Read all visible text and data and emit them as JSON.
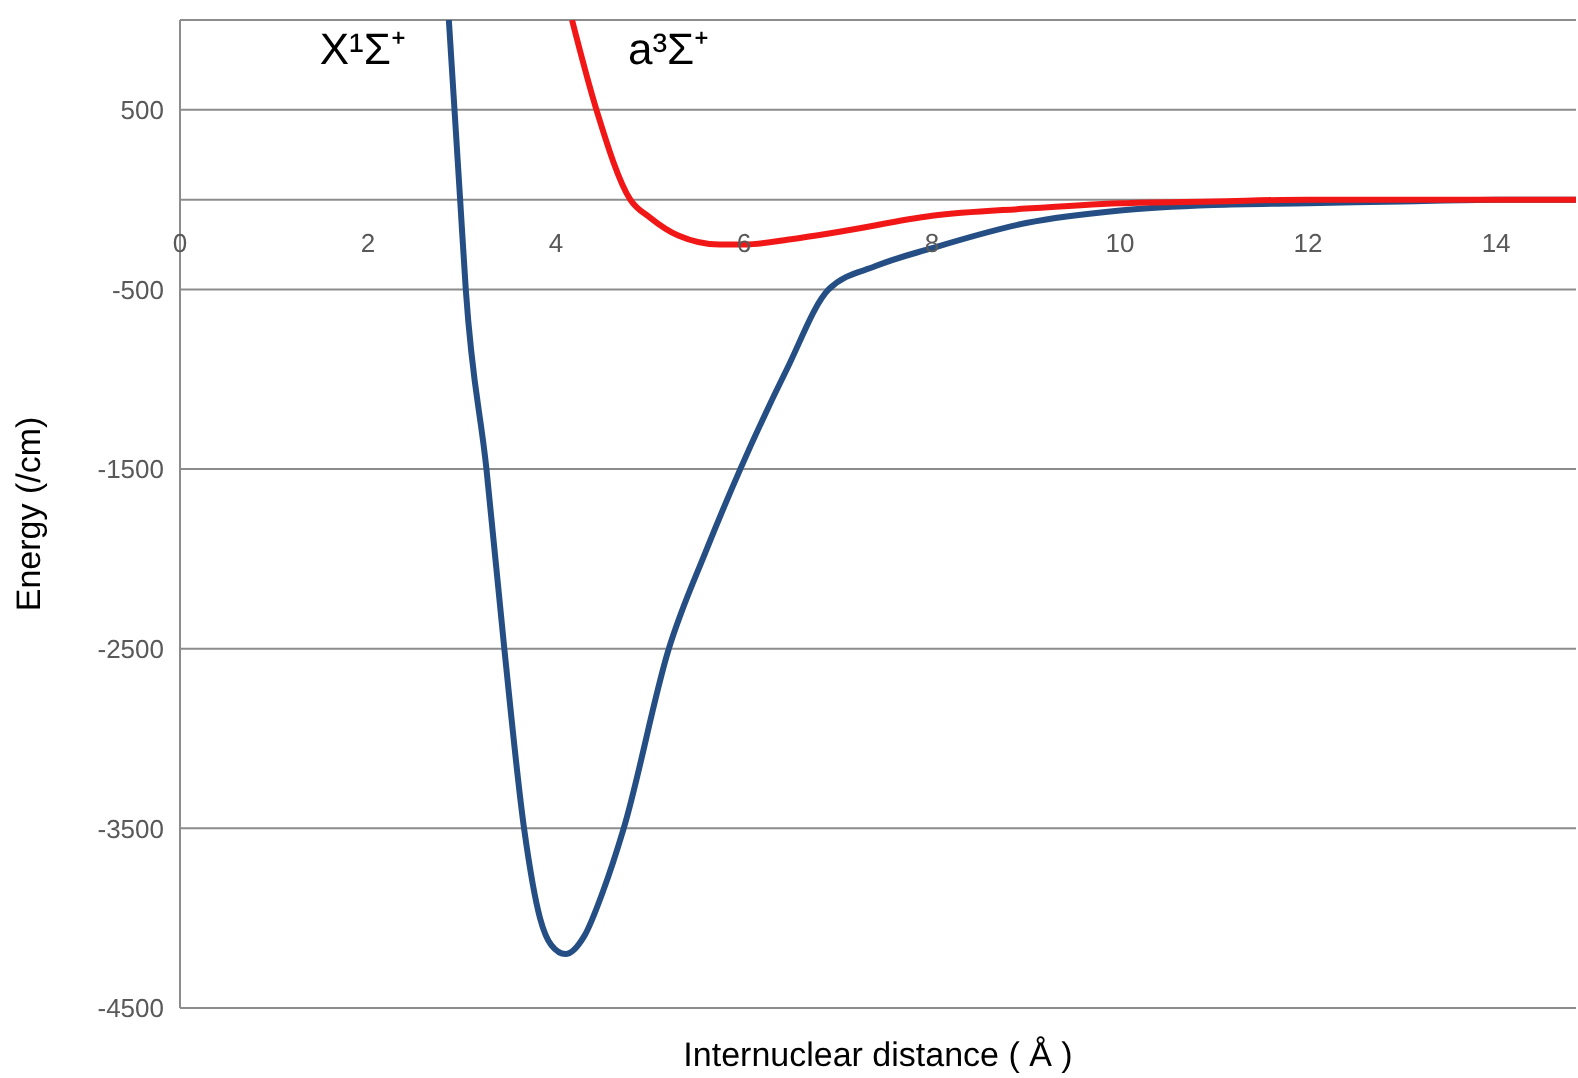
{
  "chart_data": {
    "type": "line",
    "xlabel": "Internuclear distance ( Å )",
    "ylabel": "Energy (/cm)",
    "xlim": [
      0,
      14.85
    ],
    "xticks": [
      0,
      2,
      4,
      6,
      8,
      10,
      12,
      14
    ],
    "ylim": [
      -4500,
      1000
    ],
    "yticks": [
      500,
      -500,
      -1500,
      -2500,
      -3500,
      -4500
    ],
    "grid": "y",
    "marker": "none",
    "line_style": "solid",
    "series": [
      {
        "name": "X¹Σ⁺",
        "color": "#254f84",
        "x": [
          2.86,
          2.98,
          3.04,
          3.26,
          3.45,
          3.66,
          3.83,
          3.95,
          4.1,
          4.3,
          4.5,
          4.72,
          5.2,
          5.6,
          5.96,
          6.45,
          6.9,
          7.4,
          8,
          9,
          10,
          11,
          12,
          13,
          14,
          14.85
        ],
        "values": [
          1000,
          0,
          -500,
          -1500,
          -2500,
          -3500,
          -4000,
          -4150,
          -4200,
          -4100,
          -3850,
          -3500,
          -2500,
          -1950,
          -1500,
          -950,
          -500,
          -370,
          -270,
          -130,
          -60,
          -30,
          -20,
          -10,
          0,
          0
        ]
      },
      {
        "name": "a³Σ⁺",
        "color": "#f21717",
        "x": [
          4.17,
          4.43,
          4.79,
          5,
          5.3,
          5.74,
          6,
          6.5,
          7,
          8,
          9,
          10,
          11,
          12,
          13,
          14,
          14.85
        ],
        "values": [
          1000,
          500,
          0,
          -100,
          -200,
          -250,
          -250,
          -220,
          -180,
          -90,
          -50,
          -20,
          -10,
          0,
          0,
          0,
          0
        ]
      }
    ]
  }
}
